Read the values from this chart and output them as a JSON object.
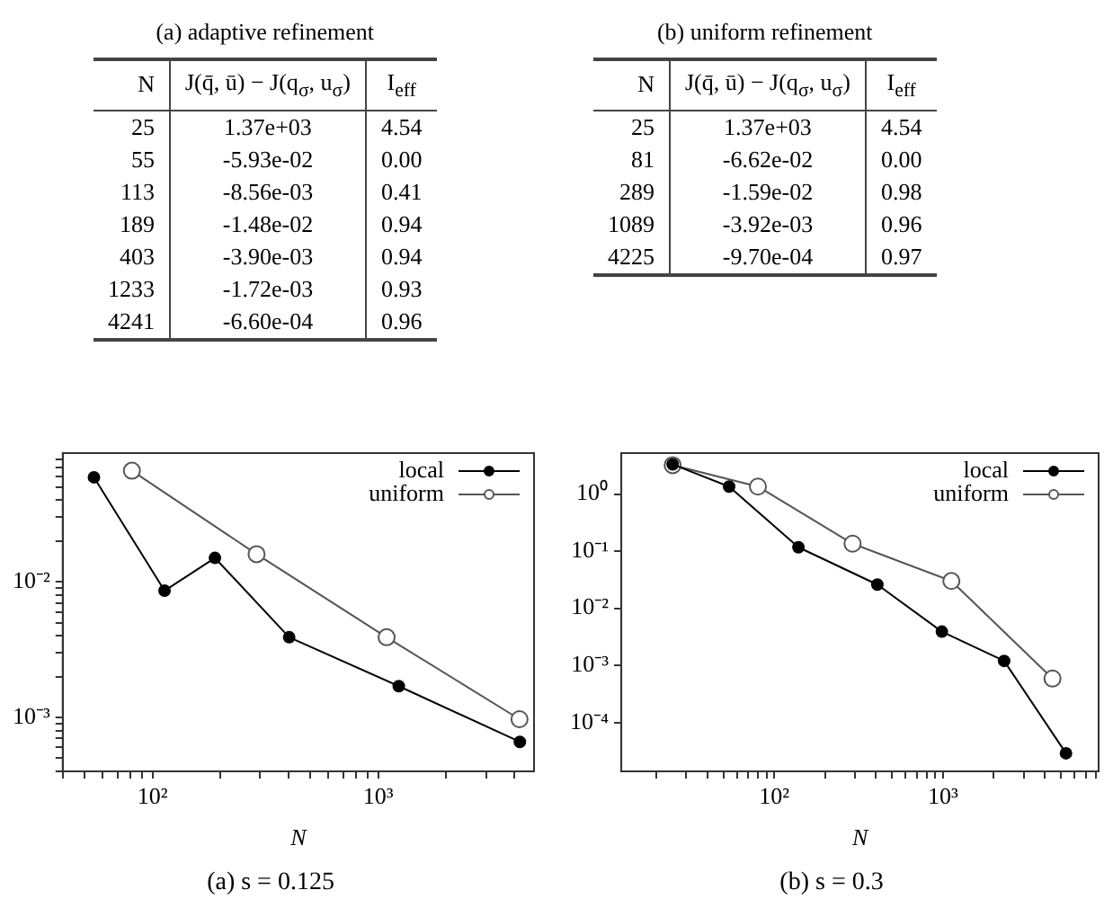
{
  "chart_data": [
    {
      "type": "other",
      "title": "(a) adaptive refinement",
      "categories": [
        "N",
        "J(q̄, ū) − J(q$_{σ}$, u$_{σ}$)",
        "I$_{eff}$"
      ],
      "annotations": [
        "25",
        "1.37e+03",
        "4.54",
        "55",
        "-5.93e-02",
        "0.00",
        "113",
        "-8.56e-03",
        "0.41",
        "189",
        "-1.48e-02",
        "0.94",
        "403",
        "-3.90e-03",
        "0.94",
        "1233",
        "-1.72e-03",
        "0.93",
        "4241",
        "-6.60e-04",
        "0.96"
      ]
    },
    {
      "type": "other",
      "title": "(b) uniform refinement",
      "categories": [
        "N",
        "J(q̄, ū) − J(q$_{σ}$, u$_{σ}$)",
        "I$_{eff}$"
      ],
      "annotations": [
        "25",
        "1.37e+03",
        "4.54",
        "81",
        "-6.62e-02",
        "0.00",
        "289",
        "-1.59e-02",
        "0.98",
        "1089",
        "-3.92e-03",
        "0.96",
        "4225",
        "-9.70e-04",
        "0.97"
      ]
    },
    {
      "type": "line",
      "title": "(a) s = 0.125",
      "xlabel": "N",
      "log": "xy",
      "grid": false,
      "legend": "top right",
      "marker": "circle",
      "xlim": [
        40,
        4900
      ],
      "ylim": [
        0.0004,
        0.089
      ],
      "xticks": [
        {
          "value": 40,
          "label": null
        },
        {
          "value": 50,
          "label": null
        },
        {
          "value": 60,
          "label": null
        },
        {
          "value": 70,
          "label": null
        },
        {
          "value": 80,
          "label": null
        },
        {
          "value": 90,
          "label": null
        },
        {
          "value": 100,
          "label": "10²"
        },
        {
          "value": 200,
          "label": null
        },
        {
          "value": 300,
          "label": null
        },
        {
          "value": 400,
          "label": null
        },
        {
          "value": 500,
          "label": null
        },
        {
          "value": 600,
          "label": null
        },
        {
          "value": 700,
          "label": null
        },
        {
          "value": 800,
          "label": null
        },
        {
          "value": 900,
          "label": null
        },
        {
          "value": 1000,
          "label": "10³"
        },
        {
          "value": 2000,
          "label": null
        },
        {
          "value": 3000,
          "label": null
        },
        {
          "value": 4000,
          "label": null
        }
      ],
      "yticks": [
        {
          "value": 0.0004,
          "label": null
        },
        {
          "value": 0.0005,
          "label": null
        },
        {
          "value": 0.0006,
          "label": null
        },
        {
          "value": 0.0007,
          "label": null
        },
        {
          "value": 0.0008,
          "label": null
        },
        {
          "value": 0.0009,
          "label": null
        },
        {
          "value": 0.001,
          "label": "10⁻³"
        },
        {
          "value": 0.002,
          "label": null
        },
        {
          "value": 0.003,
          "label": null
        },
        {
          "value": 0.004,
          "label": null
        },
        {
          "value": 0.005,
          "label": null
        },
        {
          "value": 0.006,
          "label": null
        },
        {
          "value": 0.007,
          "label": null
        },
        {
          "value": 0.008,
          "label": null
        },
        {
          "value": 0.009,
          "label": null
        },
        {
          "value": 0.01,
          "label": "10⁻²"
        },
        {
          "value": 0.02,
          "label": null
        },
        {
          "value": 0.03,
          "label": null
        },
        {
          "value": 0.04,
          "label": null
        },
        {
          "value": 0.05,
          "label": null
        },
        {
          "value": 0.06,
          "label": null
        },
        {
          "value": 0.07,
          "label": null
        },
        {
          "value": 0.08,
          "label": null
        }
      ],
      "series": [
        {
          "name": "local",
          "color": "#000000",
          "x": [
            55,
            113,
            189,
            403,
            1233,
            4241
          ],
          "values": [
            0.059,
            0.0086,
            0.015,
            0.0039,
            0.0017,
            0.00066
          ]
        },
        {
          "name": "uniform",
          "color": "#555555",
          "x": [
            81,
            289,
            1089,
            4225
          ],
          "values": [
            0.066,
            0.016,
            0.0039,
            0.00097
          ]
        }
      ]
    },
    {
      "type": "line",
      "title": "(b) s = 0.3",
      "xlabel": "N",
      "log": "xy",
      "grid": false,
      "legend": "top right",
      "marker": "circle",
      "xlim": [
        12.4,
        8350
      ],
      "ylim": [
        1.4e-05,
        5.2
      ],
      "xticks": [
        {
          "value": 20,
          "label": null
        },
        {
          "value": 30,
          "label": null
        },
        {
          "value": 40,
          "label": null
        },
        {
          "value": 50,
          "label": null
        },
        {
          "value": 60,
          "label": null
        },
        {
          "value": 70,
          "label": null
        },
        {
          "value": 80,
          "label": null
        },
        {
          "value": 90,
          "label": null
        },
        {
          "value": 100,
          "label": "10²"
        },
        {
          "value": 200,
          "label": null
        },
        {
          "value": 300,
          "label": null
        },
        {
          "value": 400,
          "label": null
        },
        {
          "value": 500,
          "label": null
        },
        {
          "value": 600,
          "label": null
        },
        {
          "value": 700,
          "label": null
        },
        {
          "value": 800,
          "label": null
        },
        {
          "value": 900,
          "label": null
        },
        {
          "value": 1000,
          "label": "10³"
        },
        {
          "value": 2000,
          "label": null
        },
        {
          "value": 3000,
          "label": null
        },
        {
          "value": 4000,
          "label": null
        },
        {
          "value": 5000,
          "label": null
        },
        {
          "value": 6000,
          "label": null
        },
        {
          "value": 7000,
          "label": null
        },
        {
          "value": 8000,
          "label": null
        }
      ],
      "yticks": [
        {
          "value": 0.0001,
          "label": "10⁻⁴"
        },
        {
          "value": 0.001,
          "label": "10⁻³"
        },
        {
          "value": 0.01,
          "label": "10⁻²"
        },
        {
          "value": 0.1,
          "label": "10⁻¹"
        },
        {
          "value": 1,
          "label": "10⁰"
        }
      ],
      "series": [
        {
          "name": "local",
          "color": "#000000",
          "x": [
            25,
            54,
            139,
            408,
            984,
            2300,
            5350
          ],
          "values": [
            3.3,
            1.35,
            0.117,
            0.026,
            0.0039,
            0.0012,
            2.9e-05
          ]
        },
        {
          "name": "uniform",
          "color": "#555555",
          "x": [
            25,
            80,
            291,
            1120,
            4450
          ],
          "values": [
            3.2,
            1.35,
            0.135,
            0.03,
            0.00059
          ]
        }
      ]
    }
  ]
}
